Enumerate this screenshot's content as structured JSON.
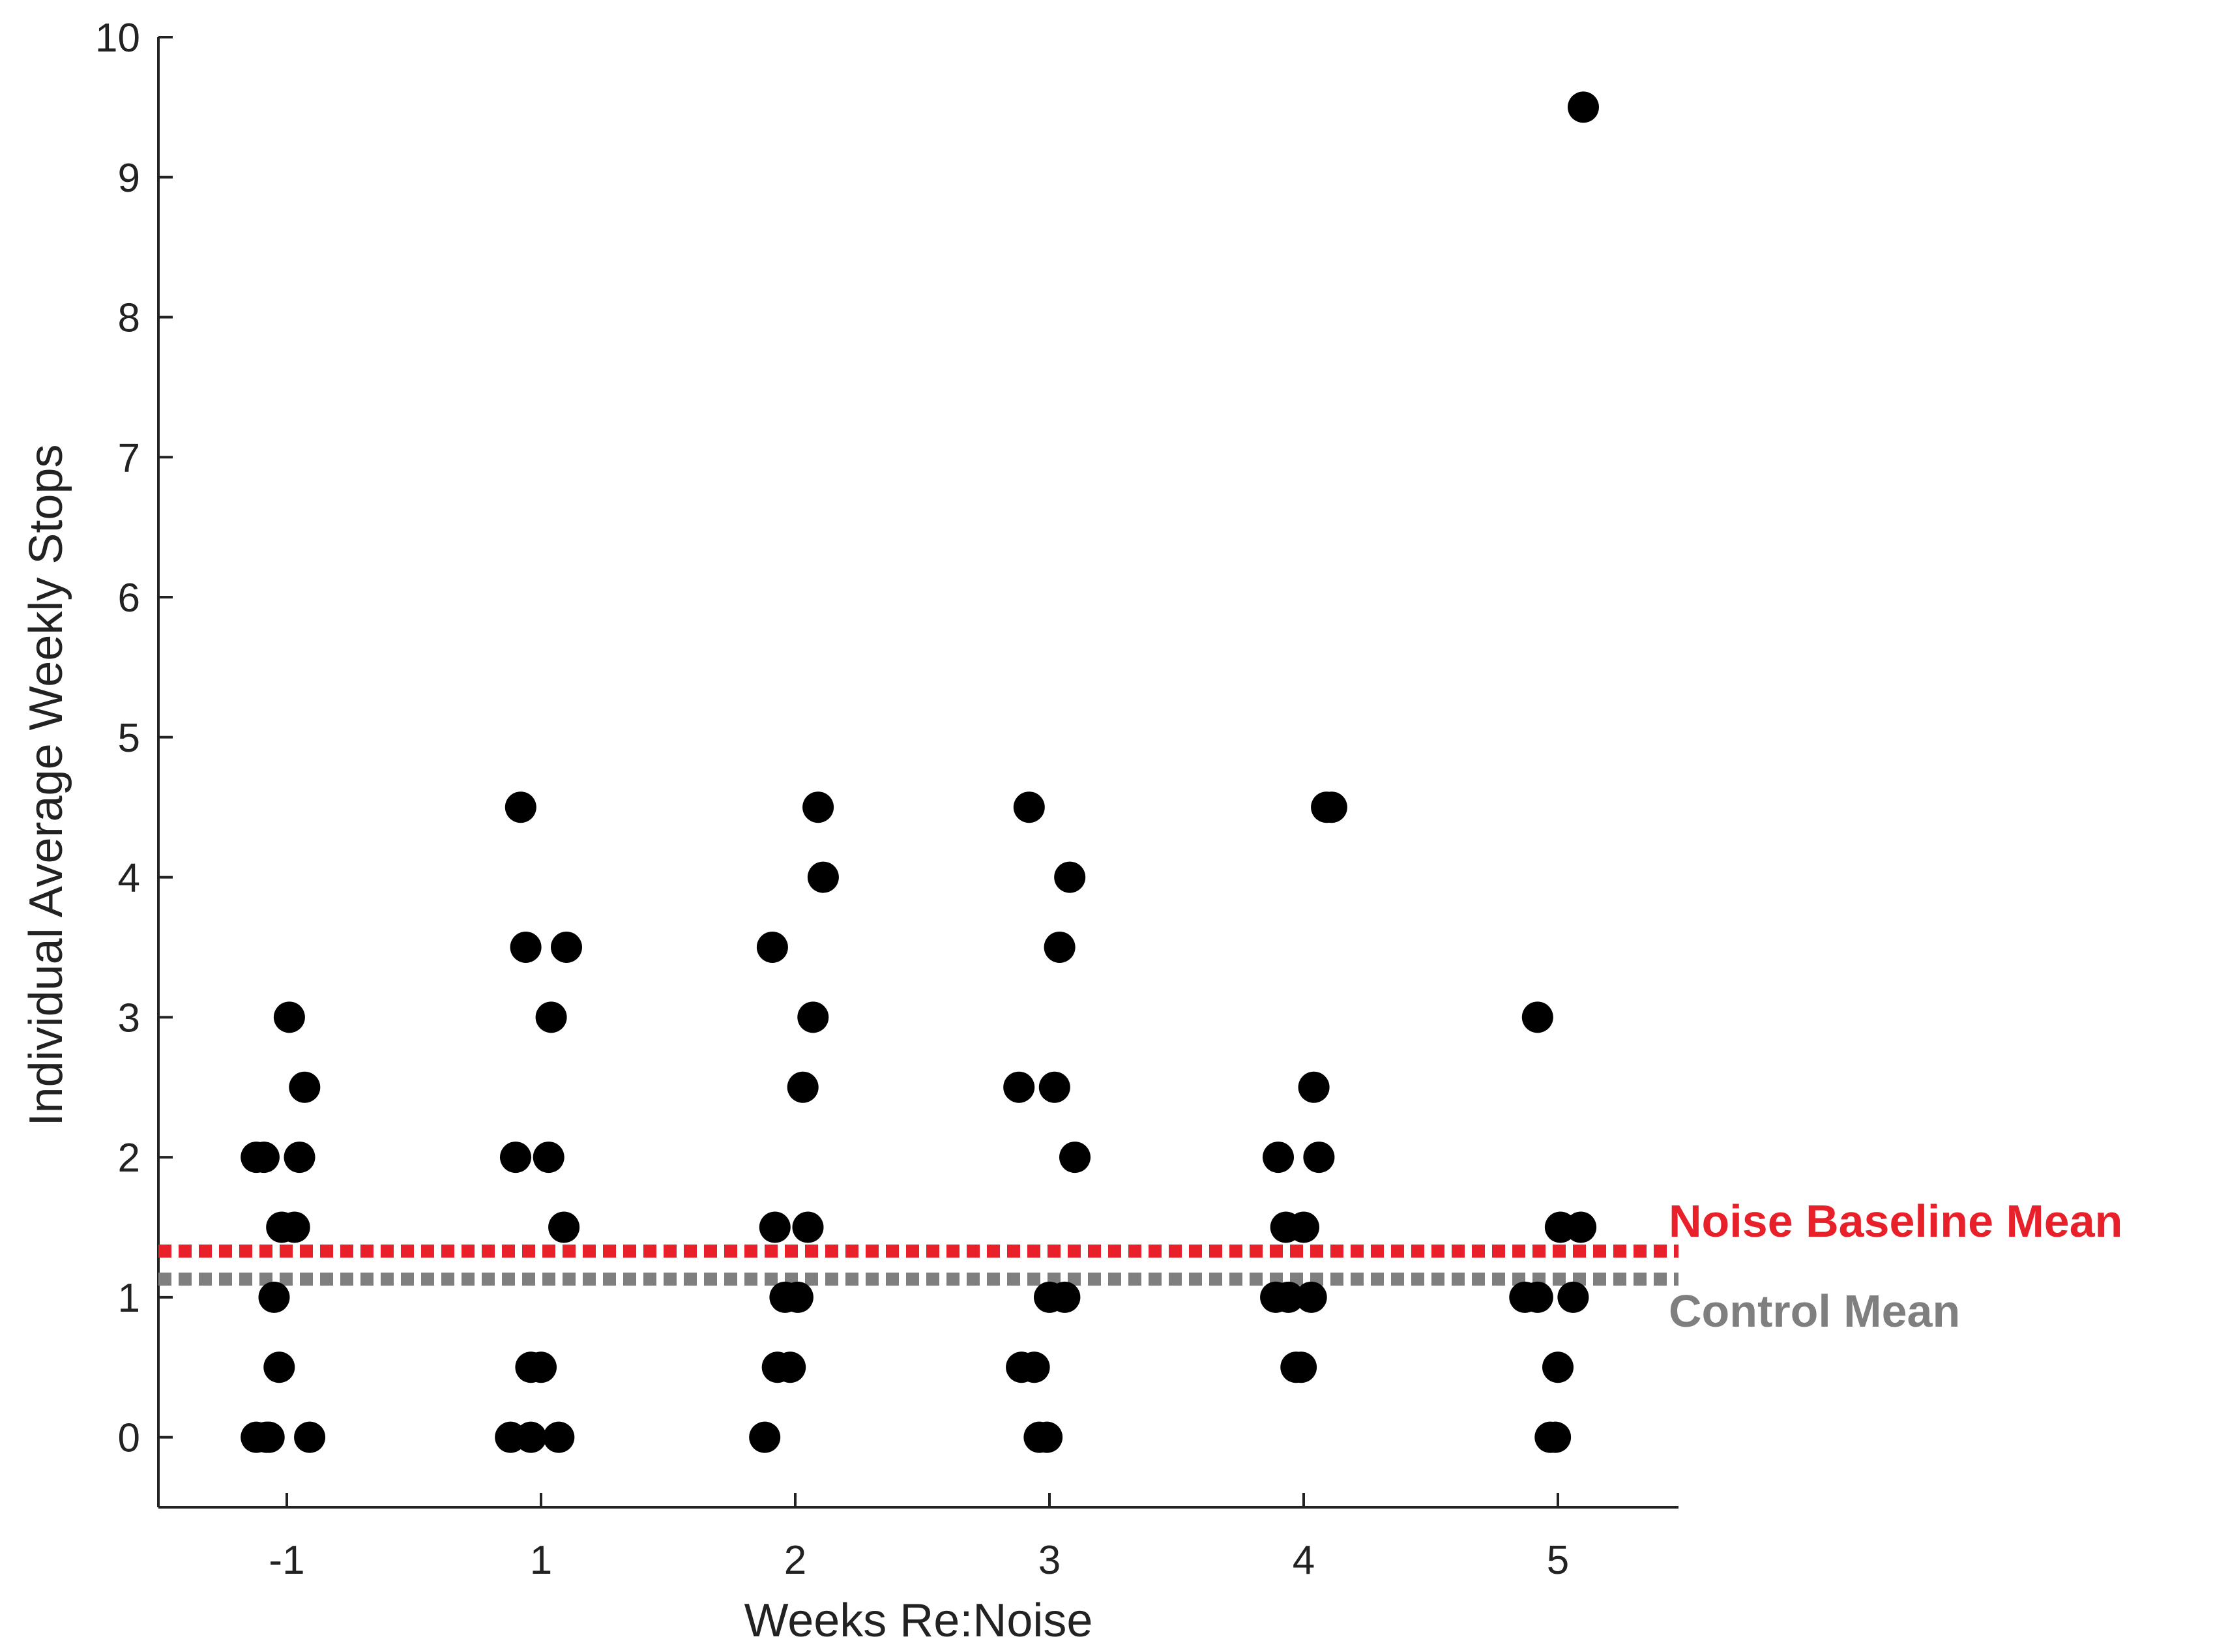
{
  "chart_data": {
    "type": "scatter",
    "title": "",
    "xlabel": "Weeks Re:Noise",
    "ylabel": "Individual Average Weekly Stops",
    "categories": [
      "-1",
      "1",
      "2",
      "3",
      "4",
      "5"
    ],
    "yticks": [
      "0",
      "1",
      "2",
      "3",
      "4",
      "5",
      "6",
      "7",
      "8",
      "9",
      "10"
    ],
    "ylim": [
      -0.5,
      10
    ],
    "grid": false,
    "reference_lines": [
      {
        "name": "Noise Baseline Mean",
        "value": 1.33,
        "color": "#e8202a"
      },
      {
        "name": "Control Mean",
        "value": 1.13,
        "color": "#7f7f7f"
      }
    ],
    "series": [
      {
        "category": "-1",
        "points": [
          {
            "offset": -0.12,
            "y": 0
          },
          {
            "offset": -0.08,
            "y": 0
          },
          {
            "offset": -0.07,
            "y": 0
          },
          {
            "offset": 0.09,
            "y": 0
          },
          {
            "offset": -0.03,
            "y": 0.5
          },
          {
            "offset": -0.05,
            "y": 1
          },
          {
            "offset": -0.02,
            "y": 1.5
          },
          {
            "offset": 0.03,
            "y": 1.5
          },
          {
            "offset": -0.12,
            "y": 2
          },
          {
            "offset": -0.09,
            "y": 2
          },
          {
            "offset": 0.05,
            "y": 2
          },
          {
            "offset": 0.07,
            "y": 2.5
          },
          {
            "offset": 0.01,
            "y": 3
          }
        ]
      },
      {
        "category": "1",
        "points": [
          {
            "offset": -0.12,
            "y": 0
          },
          {
            "offset": -0.04,
            "y": 0
          },
          {
            "offset": 0.07,
            "y": 0
          },
          {
            "offset": -0.04,
            "y": 0.5
          },
          {
            "offset": 0.0,
            "y": 0.5
          },
          {
            "offset": 0.09,
            "y": 1.5
          },
          {
            "offset": -0.1,
            "y": 2
          },
          {
            "offset": 0.03,
            "y": 2
          },
          {
            "offset": 0.04,
            "y": 3
          },
          {
            "offset": -0.06,
            "y": 3.5
          },
          {
            "offset": 0.1,
            "y": 3.5
          },
          {
            "offset": -0.08,
            "y": 4.5
          }
        ]
      },
      {
        "category": "2",
        "points": [
          {
            "offset": -0.12,
            "y": 0
          },
          {
            "offset": -0.07,
            "y": 0.5
          },
          {
            "offset": -0.02,
            "y": 0.5
          },
          {
            "offset": -0.04,
            "y": 1
          },
          {
            "offset": 0.01,
            "y": 1
          },
          {
            "offset": -0.08,
            "y": 1.5
          },
          {
            "offset": 0.05,
            "y": 1.5
          },
          {
            "offset": 0.03,
            "y": 2.5
          },
          {
            "offset": 0.07,
            "y": 3
          },
          {
            "offset": -0.09,
            "y": 3.5
          },
          {
            "offset": 0.11,
            "y": 4
          },
          {
            "offset": 0.09,
            "y": 4.5
          }
        ]
      },
      {
        "category": "3",
        "points": [
          {
            "offset": -0.04,
            "y": 0
          },
          {
            "offset": -0.01,
            "y": 0
          },
          {
            "offset": -0.11,
            "y": 0.5
          },
          {
            "offset": -0.06,
            "y": 0.5
          },
          {
            "offset": 0.0,
            "y": 1
          },
          {
            "offset": 0.06,
            "y": 1
          },
          {
            "offset": 0.1,
            "y": 2
          },
          {
            "offset": -0.12,
            "y": 2.5
          },
          {
            "offset": 0.02,
            "y": 2.5
          },
          {
            "offset": 0.04,
            "y": 3.5
          },
          {
            "offset": 0.08,
            "y": 4
          },
          {
            "offset": -0.08,
            "y": 4.5
          }
        ]
      },
      {
        "category": "4",
        "points": [
          {
            "offset": -0.03,
            "y": 0.5
          },
          {
            "offset": -0.01,
            "y": 0.5
          },
          {
            "offset": -0.11,
            "y": 1
          },
          {
            "offset": -0.06,
            "y": 1
          },
          {
            "offset": 0.03,
            "y": 1
          },
          {
            "offset": -0.07,
            "y": 1.5
          },
          {
            "offset": 0.0,
            "y": 1.5
          },
          {
            "offset": -0.1,
            "y": 2
          },
          {
            "offset": 0.06,
            "y": 2
          },
          {
            "offset": 0.04,
            "y": 2.5
          },
          {
            "offset": 0.09,
            "y": 4.5
          },
          {
            "offset": 0.11,
            "y": 4.5
          }
        ]
      },
      {
        "category": "5",
        "points": [
          {
            "offset": -0.03,
            "y": 0
          },
          {
            "offset": -0.01,
            "y": 0
          },
          {
            "offset": 0.0,
            "y": 0.5
          },
          {
            "offset": -0.13,
            "y": 1
          },
          {
            "offset": -0.08,
            "y": 1
          },
          {
            "offset": 0.06,
            "y": 1
          },
          {
            "offset": 0.01,
            "y": 1.5
          },
          {
            "offset": 0.09,
            "y": 1.5
          },
          {
            "offset": -0.08,
            "y": 3
          },
          {
            "offset": 0.1,
            "y": 9.5
          }
        ]
      }
    ]
  }
}
